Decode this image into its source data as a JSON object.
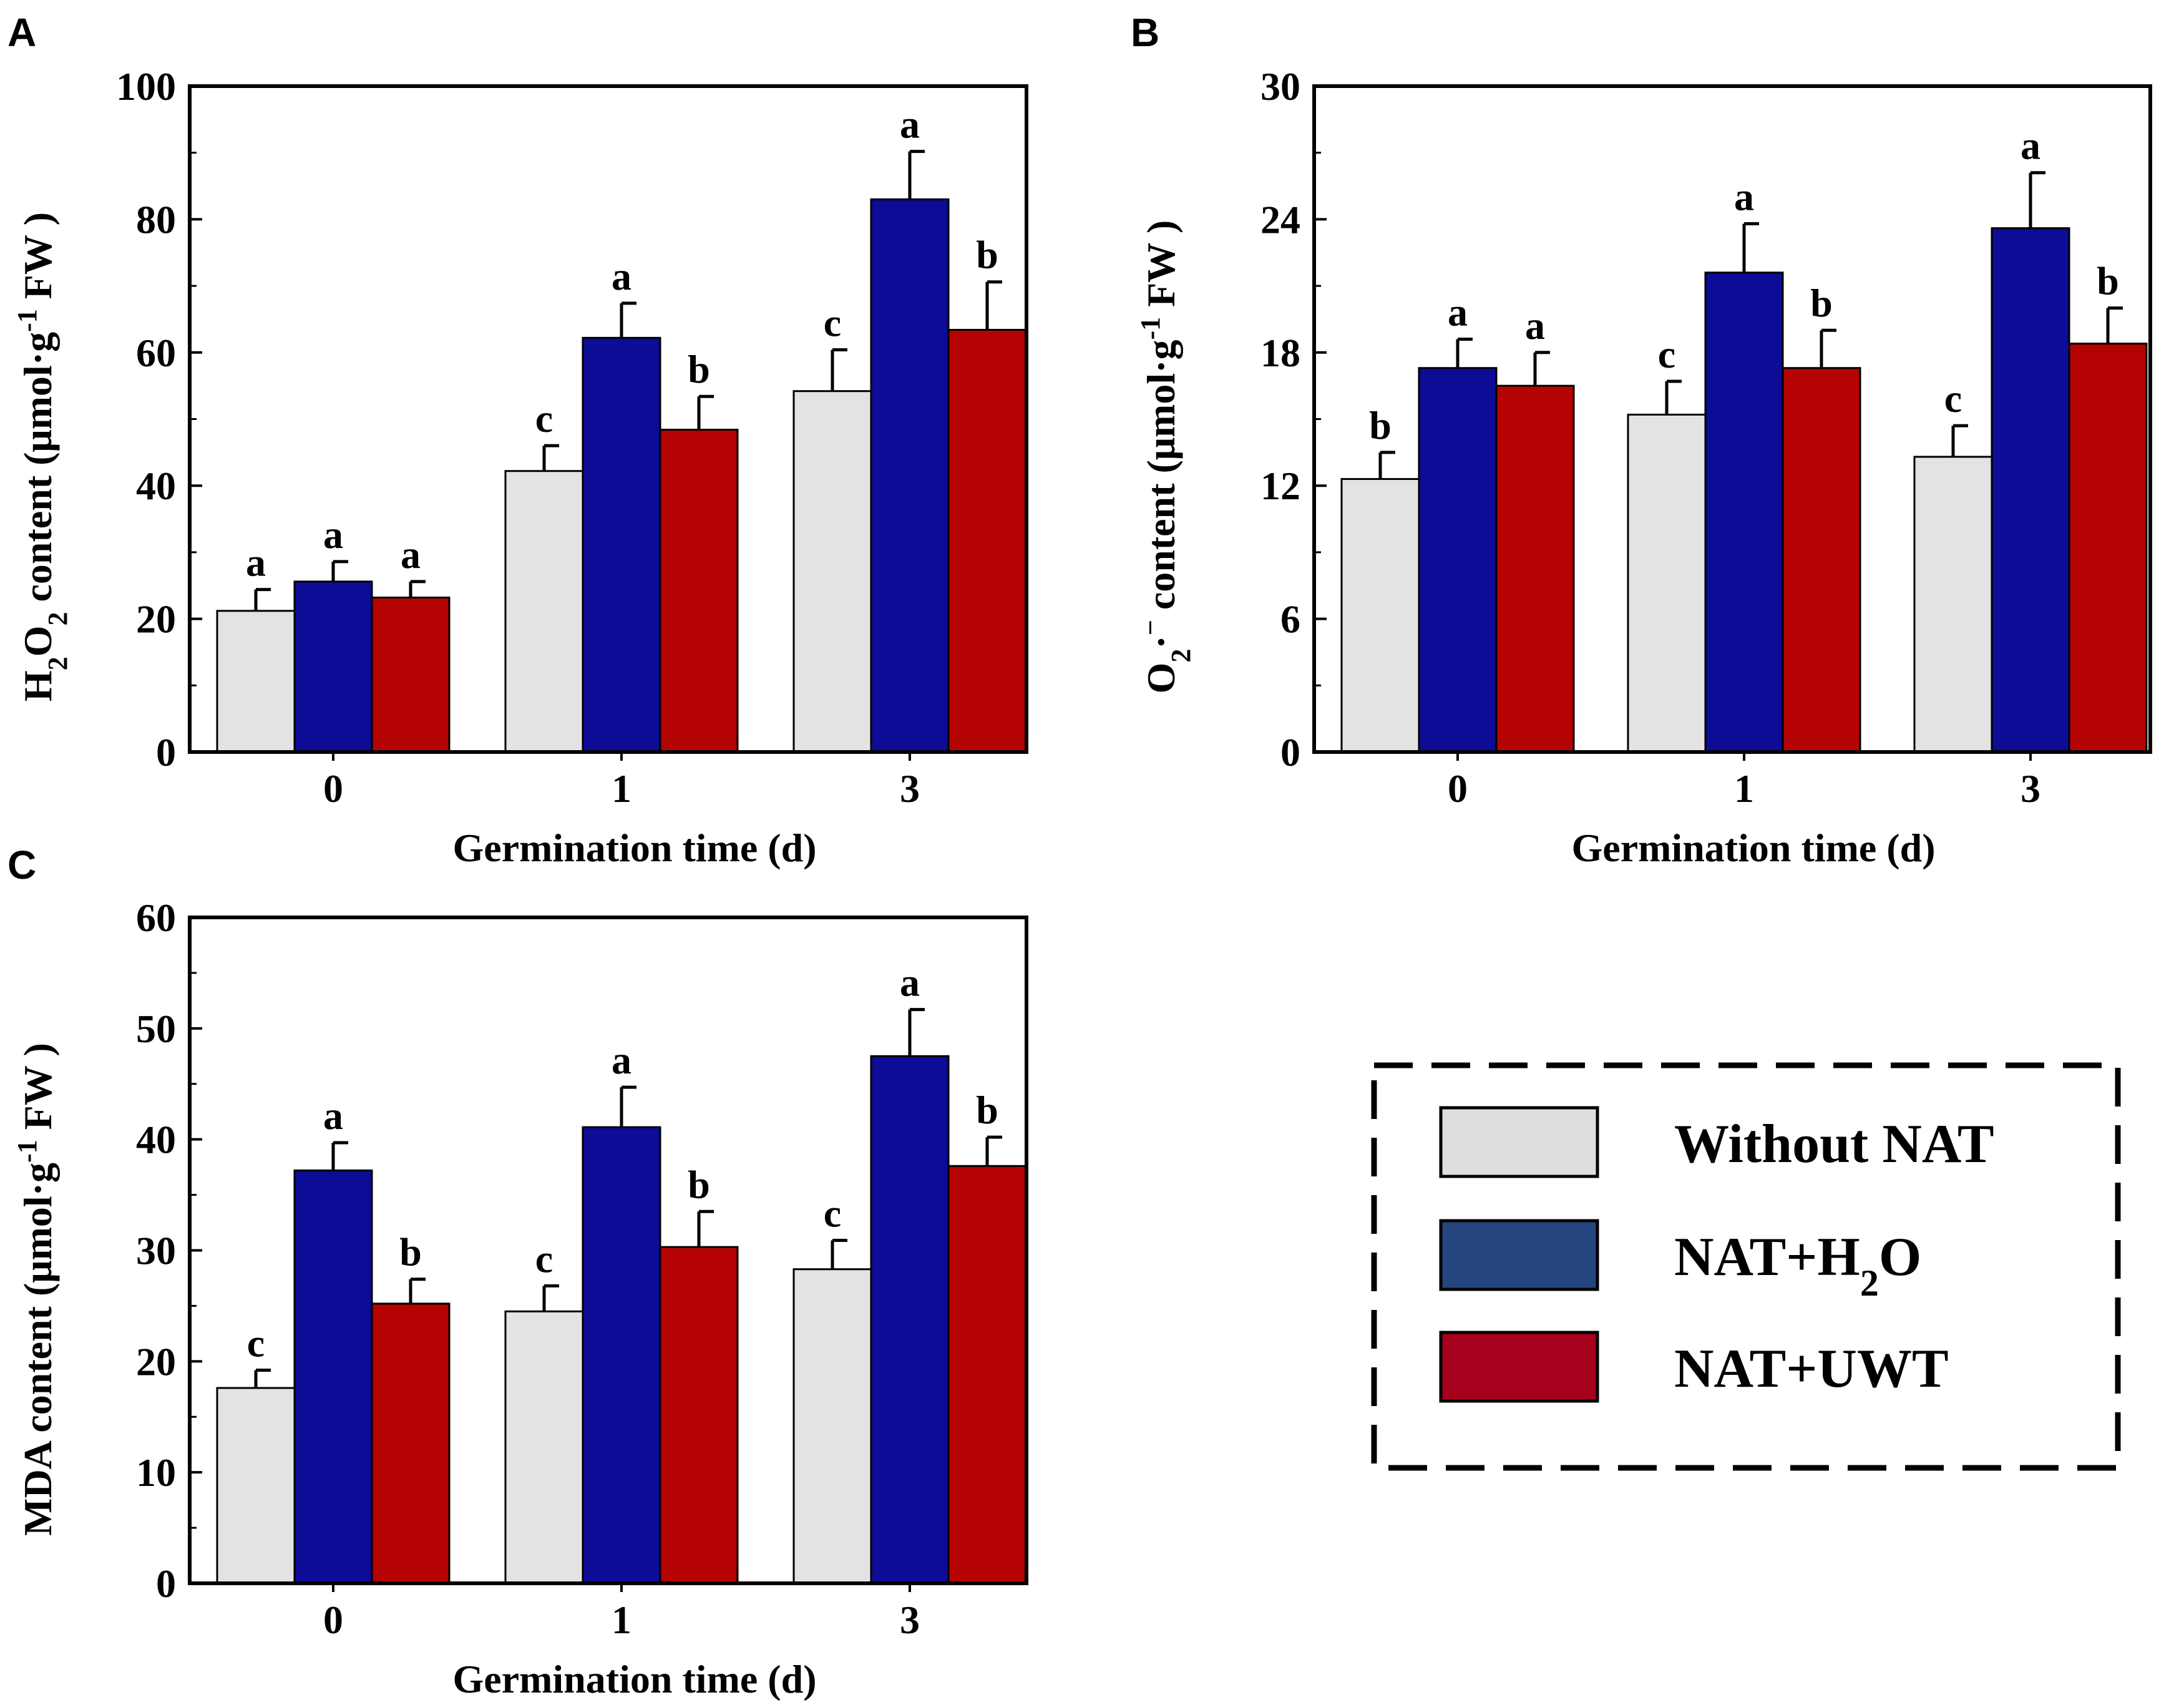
{
  "colors": {
    "without_nat": "#e3e3e3",
    "nat_h2o": "#0c0c96",
    "nat_uwt": "#b50303",
    "legend_without_nat": "#dedede",
    "legend_nat_h2o": "#24457e",
    "legend_nat_uwt": "#a5001c"
  },
  "chart_data": [
    {
      "id": "A",
      "panel_label": "A",
      "type": "bar",
      "xlabel": "Germination time (d)",
      "ylabel_parts": [
        "H",
        "2",
        "O",
        "2",
        " content (μmol·g",
        "-1",
        " FW )"
      ],
      "categories": [
        "0",
        "1",
        "3"
      ],
      "ylim": [
        0,
        100
      ],
      "yticks": [
        0,
        20,
        40,
        60,
        80,
        100
      ],
      "series": [
        {
          "name": "Without NAT",
          "values": [
            21.2,
            42.2,
            54.2
          ],
          "errors": [
            3.2,
            3.8,
            6.2
          ],
          "letters": [
            "a",
            "c",
            "c"
          ]
        },
        {
          "name": "NAT+H2O",
          "values": [
            25.6,
            62.2,
            83.0
          ],
          "errors": [
            3.0,
            5.2,
            7.2
          ],
          "letters": [
            "a",
            "a",
            "a"
          ]
        },
        {
          "name": "NAT+UWT",
          "values": [
            23.2,
            48.4,
            63.4
          ],
          "errors": [
            2.4,
            5.0,
            7.2
          ],
          "letters": [
            "a",
            "b",
            "b"
          ]
        }
      ]
    },
    {
      "id": "B",
      "panel_label": "B",
      "type": "bar",
      "xlabel": "Germination time (d)",
      "ylabel_parts": [
        "O",
        "2",
        "·",
        "−",
        " content (μmol·g",
        "-1",
        " FW )"
      ],
      "categories": [
        "0",
        "1",
        "3"
      ],
      "ylim": [
        0,
        30
      ],
      "yticks": [
        0,
        6,
        12,
        18,
        24,
        30
      ],
      "series": [
        {
          "name": "Without NAT",
          "values": [
            12.3,
            15.2,
            13.3
          ],
          "errors": [
            1.2,
            1.5,
            1.4
          ],
          "letters": [
            "b",
            "c",
            "c"
          ]
        },
        {
          "name": "NAT+H2O",
          "values": [
            17.3,
            21.6,
            23.6
          ],
          "errors": [
            1.3,
            2.2,
            2.5
          ],
          "letters": [
            "a",
            "a",
            "a"
          ]
        },
        {
          "name": "NAT+UWT",
          "values": [
            16.5,
            17.3,
            18.4
          ],
          "errors": [
            1.5,
            1.7,
            1.6
          ],
          "letters": [
            "a",
            "b",
            "b"
          ]
        }
      ]
    },
    {
      "id": "C",
      "panel_label": "C",
      "type": "bar",
      "xlabel": "Germination time (d)",
      "ylabel_parts": [
        "MDA content (μmol·g",
        "-1",
        " FW )"
      ],
      "categories": [
        "0",
        "1",
        "3"
      ],
      "ylim": [
        0,
        60
      ],
      "yticks": [
        0,
        10,
        20,
        30,
        40,
        50,
        60
      ],
      "series": [
        {
          "name": "Without NAT",
          "values": [
            17.6,
            24.5,
            28.3
          ],
          "errors": [
            1.6,
            2.3,
            2.6
          ],
          "letters": [
            "c",
            "c",
            "c"
          ]
        },
        {
          "name": "NAT+H2O",
          "values": [
            37.2,
            41.1,
            47.5
          ],
          "errors": [
            2.5,
            3.6,
            4.2
          ],
          "letters": [
            "a",
            "a",
            "a"
          ]
        },
        {
          "name": "NAT+UWT",
          "values": [
            25.2,
            30.3,
            37.6
          ],
          "errors": [
            2.2,
            3.2,
            2.6
          ],
          "letters": [
            "b",
            "b",
            "b"
          ]
        }
      ]
    }
  ],
  "legend": {
    "items": [
      {
        "label": "Without NAT",
        "label_main": "Without NAT",
        "label_sub": "",
        "label_tail": ""
      },
      {
        "label": "NAT+H2O",
        "label_main": "NAT+H",
        "label_sub": "2",
        "label_tail": "O"
      },
      {
        "label": "NAT+UWT",
        "label_main": "NAT+UWT",
        "label_sub": "",
        "label_tail": ""
      }
    ]
  }
}
